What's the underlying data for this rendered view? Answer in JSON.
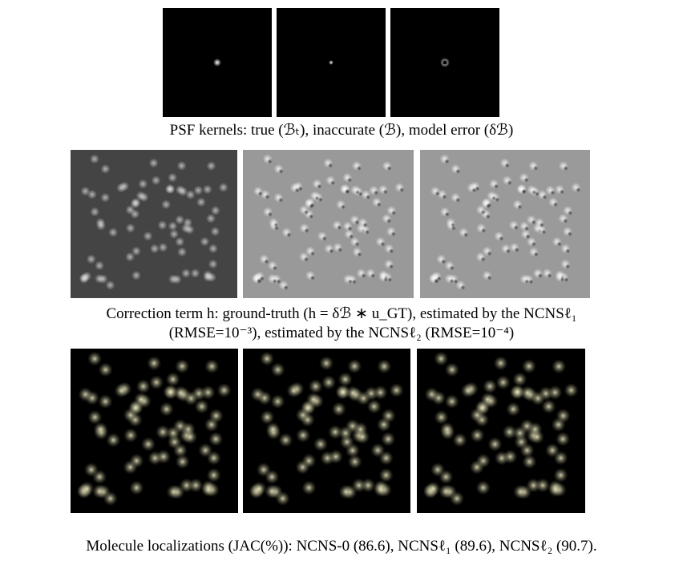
{
  "figure": {
    "captions": [
      "PSF kernels: true (ℬₜ), inaccurate (ℬ), model error (δℬ)",
      "Correction term h: ground-truth (h = δℬ ∗ u_GT), estimated by the NCNSℓ₁",
      "(RMSE=10⁻³), estimated by the NCNSℓ₂ (RMSE=10⁻⁴)",
      "Molecule localizations (JAC(%)): NCNS-0 (86.6), NCNSℓ₁ (89.6), NCNSℓ₂ (90.7)."
    ]
  }
}
